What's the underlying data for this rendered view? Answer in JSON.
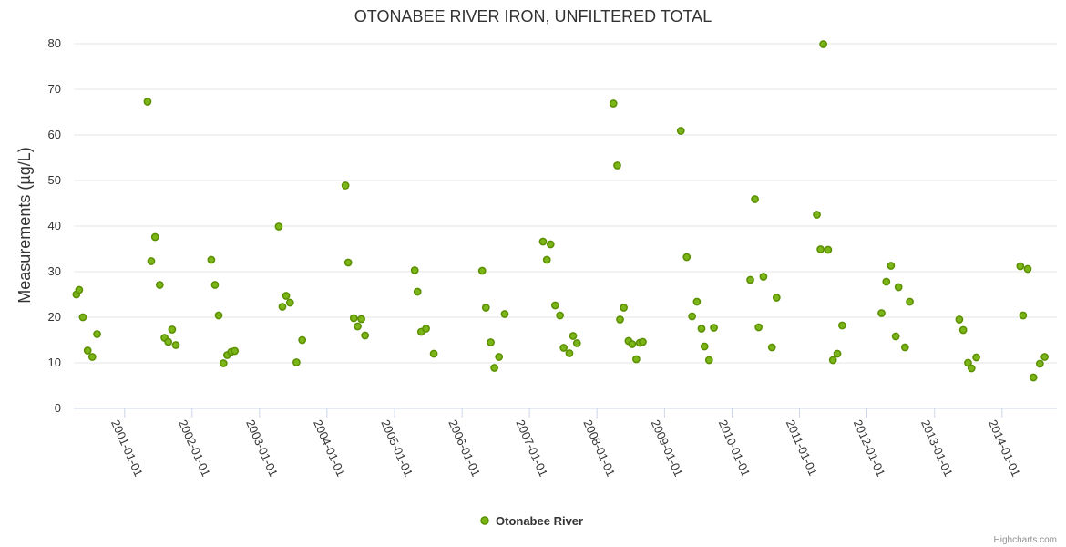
{
  "chart_data": {
    "type": "scatter",
    "title": "OTONABEE RIVER IRON, UNFILTERED TOTAL",
    "xlabel": "",
    "ylabel": "Measurements (µg/L)",
    "ylim": [
      0,
      80
    ],
    "yticks": [
      "0",
      "10",
      "20",
      "30",
      "40",
      "50",
      "60",
      "70",
      "80"
    ],
    "xlim": [
      "2000-04-01",
      "2014-10-25"
    ],
    "xticks": [
      "2001-01-01",
      "2002-01-01",
      "2003-01-01",
      "2004-01-01",
      "2005-01-01",
      "2006-01-01",
      "2007-01-01",
      "2008-01-01",
      "2009-01-01",
      "2010-01-01",
      "2011-01-01",
      "2012-01-01",
      "2013-01-01",
      "2014-01-01"
    ],
    "grid": true,
    "legend": "bottom-center",
    "marker_color": "#7cb518",
    "marker_stroke": "#5a8f00",
    "series": [
      {
        "name": "Otonabee River",
        "points": [
          [
            "2000-04-15",
            25
          ],
          [
            "2000-04-30",
            26
          ],
          [
            "2000-05-20",
            20
          ],
          [
            "2000-06-15",
            12.7
          ],
          [
            "2000-07-10",
            11.3
          ],
          [
            "2000-08-05",
            16.3
          ],
          [
            "2001-05-05",
            67.3
          ],
          [
            "2001-05-25",
            32.3
          ],
          [
            "2001-06-15",
            37.6
          ],
          [
            "2001-07-10",
            27.1
          ],
          [
            "2001-08-05",
            15.5
          ],
          [
            "2001-08-25",
            14.6
          ],
          [
            "2001-09-15",
            17.3
          ],
          [
            "2001-10-05",
            13.9
          ],
          [
            "2002-04-15",
            32.6
          ],
          [
            "2002-05-05",
            27.1
          ],
          [
            "2002-05-25",
            20.4
          ],
          [
            "2002-06-20",
            9.9
          ],
          [
            "2002-07-10",
            11.7
          ],
          [
            "2002-08-01",
            12.4
          ],
          [
            "2002-08-20",
            12.6
          ],
          [
            "2003-04-15",
            39.9
          ],
          [
            "2003-05-05",
            22.3
          ],
          [
            "2003-05-25",
            24.7
          ],
          [
            "2003-06-15",
            23.2
          ],
          [
            "2003-07-20",
            10.1
          ],
          [
            "2003-08-20",
            15
          ],
          [
            "2004-04-10",
            48.9
          ],
          [
            "2004-04-25",
            32
          ],
          [
            "2004-05-25",
            19.8
          ],
          [
            "2004-06-15",
            18
          ],
          [
            "2004-07-05",
            19.6
          ],
          [
            "2004-07-25",
            16
          ],
          [
            "2005-04-20",
            30.3
          ],
          [
            "2005-05-05",
            25.6
          ],
          [
            "2005-05-25",
            16.8
          ],
          [
            "2005-06-20",
            17.5
          ],
          [
            "2005-08-01",
            12
          ],
          [
            "2006-04-20",
            30.2
          ],
          [
            "2006-05-10",
            22.1
          ],
          [
            "2006-06-05",
            14.5
          ],
          [
            "2006-06-25",
            8.9
          ],
          [
            "2006-07-20",
            11.3
          ],
          [
            "2006-08-20",
            20.7
          ],
          [
            "2007-03-15",
            36.6
          ],
          [
            "2007-04-05",
            32.6
          ],
          [
            "2007-04-25",
            36
          ],
          [
            "2007-05-20",
            22.6
          ],
          [
            "2007-06-15",
            20.4
          ],
          [
            "2007-07-05",
            13.3
          ],
          [
            "2007-08-05",
            12.1
          ],
          [
            "2007-08-25",
            15.9
          ],
          [
            "2007-09-15",
            14.3
          ],
          [
            "2008-03-30",
            66.9
          ],
          [
            "2008-04-20",
            53.3
          ],
          [
            "2008-05-05",
            19.5
          ],
          [
            "2008-05-25",
            22.1
          ],
          [
            "2008-06-20",
            14.8
          ],
          [
            "2008-07-10",
            14.1
          ],
          [
            "2008-08-01",
            10.8
          ],
          [
            "2008-08-20",
            14.4
          ],
          [
            "2008-09-05",
            14.6
          ],
          [
            "2009-03-30",
            60.9
          ],
          [
            "2009-05-01",
            33.2
          ],
          [
            "2009-05-30",
            20.2
          ],
          [
            "2009-06-25",
            23.4
          ],
          [
            "2009-07-20",
            17.5
          ],
          [
            "2009-08-05",
            13.6
          ],
          [
            "2009-08-30",
            10.6
          ],
          [
            "2009-09-25",
            17.7
          ],
          [
            "2010-04-10",
            28.2
          ],
          [
            "2010-05-05",
            45.9
          ],
          [
            "2010-05-25",
            17.8
          ],
          [
            "2010-06-20",
            28.9
          ],
          [
            "2010-08-05",
            13.4
          ],
          [
            "2010-08-30",
            24.3
          ],
          [
            "2011-04-05",
            42.5
          ],
          [
            "2011-04-25",
            34.9
          ],
          [
            "2011-05-10",
            79.9
          ],
          [
            "2011-06-05",
            34.8
          ],
          [
            "2011-07-01",
            10.6
          ],
          [
            "2011-07-25",
            12
          ],
          [
            "2011-08-20",
            18.2
          ],
          [
            "2012-03-20",
            20.9
          ],
          [
            "2012-04-15",
            27.8
          ],
          [
            "2012-05-10",
            31.3
          ],
          [
            "2012-06-05",
            15.8
          ],
          [
            "2012-06-20",
            26.6
          ],
          [
            "2012-07-25",
            13.4
          ],
          [
            "2012-08-20",
            23.4
          ],
          [
            "2013-05-15",
            19.5
          ],
          [
            "2013-06-05",
            17.2
          ],
          [
            "2013-07-01",
            10
          ],
          [
            "2013-07-20",
            8.8
          ],
          [
            "2013-08-15",
            11.2
          ],
          [
            "2014-04-10",
            31.2
          ],
          [
            "2014-04-25",
            20.4
          ],
          [
            "2014-05-20",
            30.6
          ],
          [
            "2014-06-20",
            6.8
          ],
          [
            "2014-07-25",
            9.8
          ],
          [
            "2014-08-20",
            11.3
          ]
        ]
      }
    ]
  },
  "credits": "Highcharts.com"
}
